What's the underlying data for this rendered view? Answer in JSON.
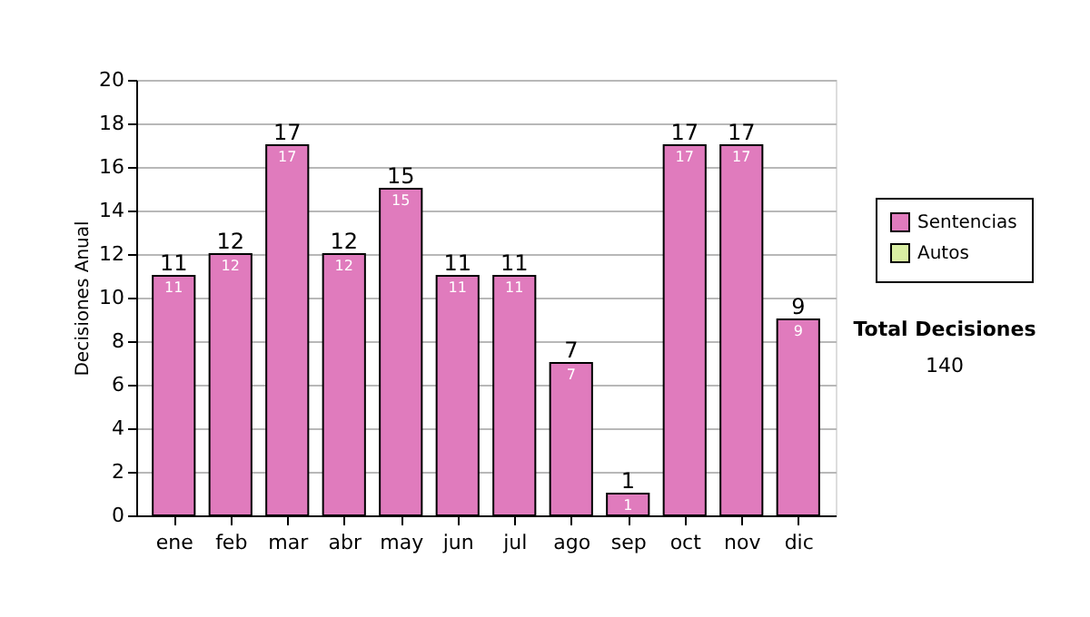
{
  "chart_data": {
    "type": "bar",
    "stacked": true,
    "ylabel": "Decisiones Anual",
    "categories": [
      "ene",
      "feb",
      "mar",
      "abr",
      "may",
      "jun",
      "jul",
      "ago",
      "sep",
      "oct",
      "nov",
      "dic"
    ],
    "series": [
      {
        "name": "Sentencias",
        "color": "#e07bbd",
        "values": [
          11,
          12,
          17,
          12,
          15,
          11,
          11,
          7,
          1,
          17,
          17,
          9
        ],
        "value_labels": [
          "11",
          "12",
          "17",
          "12",
          "15",
          "11",
          "11",
          "7",
          "1",
          "17",
          "17",
          "9"
        ]
      },
      {
        "name": "Autos",
        "color": "#d9eea3",
        "values": [
          null,
          null,
          null,
          null,
          null,
          null,
          null,
          null,
          null,
          null,
          null,
          null
        ]
      }
    ],
    "totals": [
      "11",
      "12",
      "17",
      "12",
      "15",
      "11",
      "11",
      "7",
      "1",
      "17",
      "17",
      "9"
    ],
    "ylim": [
      0,
      20
    ],
    "yticks": [
      0,
      2,
      4,
      6,
      8,
      10,
      12,
      14,
      16,
      18,
      20
    ],
    "grid": "y",
    "legend": "right",
    "annotations": [
      "Total Decisiones",
      "140"
    ]
  }
}
